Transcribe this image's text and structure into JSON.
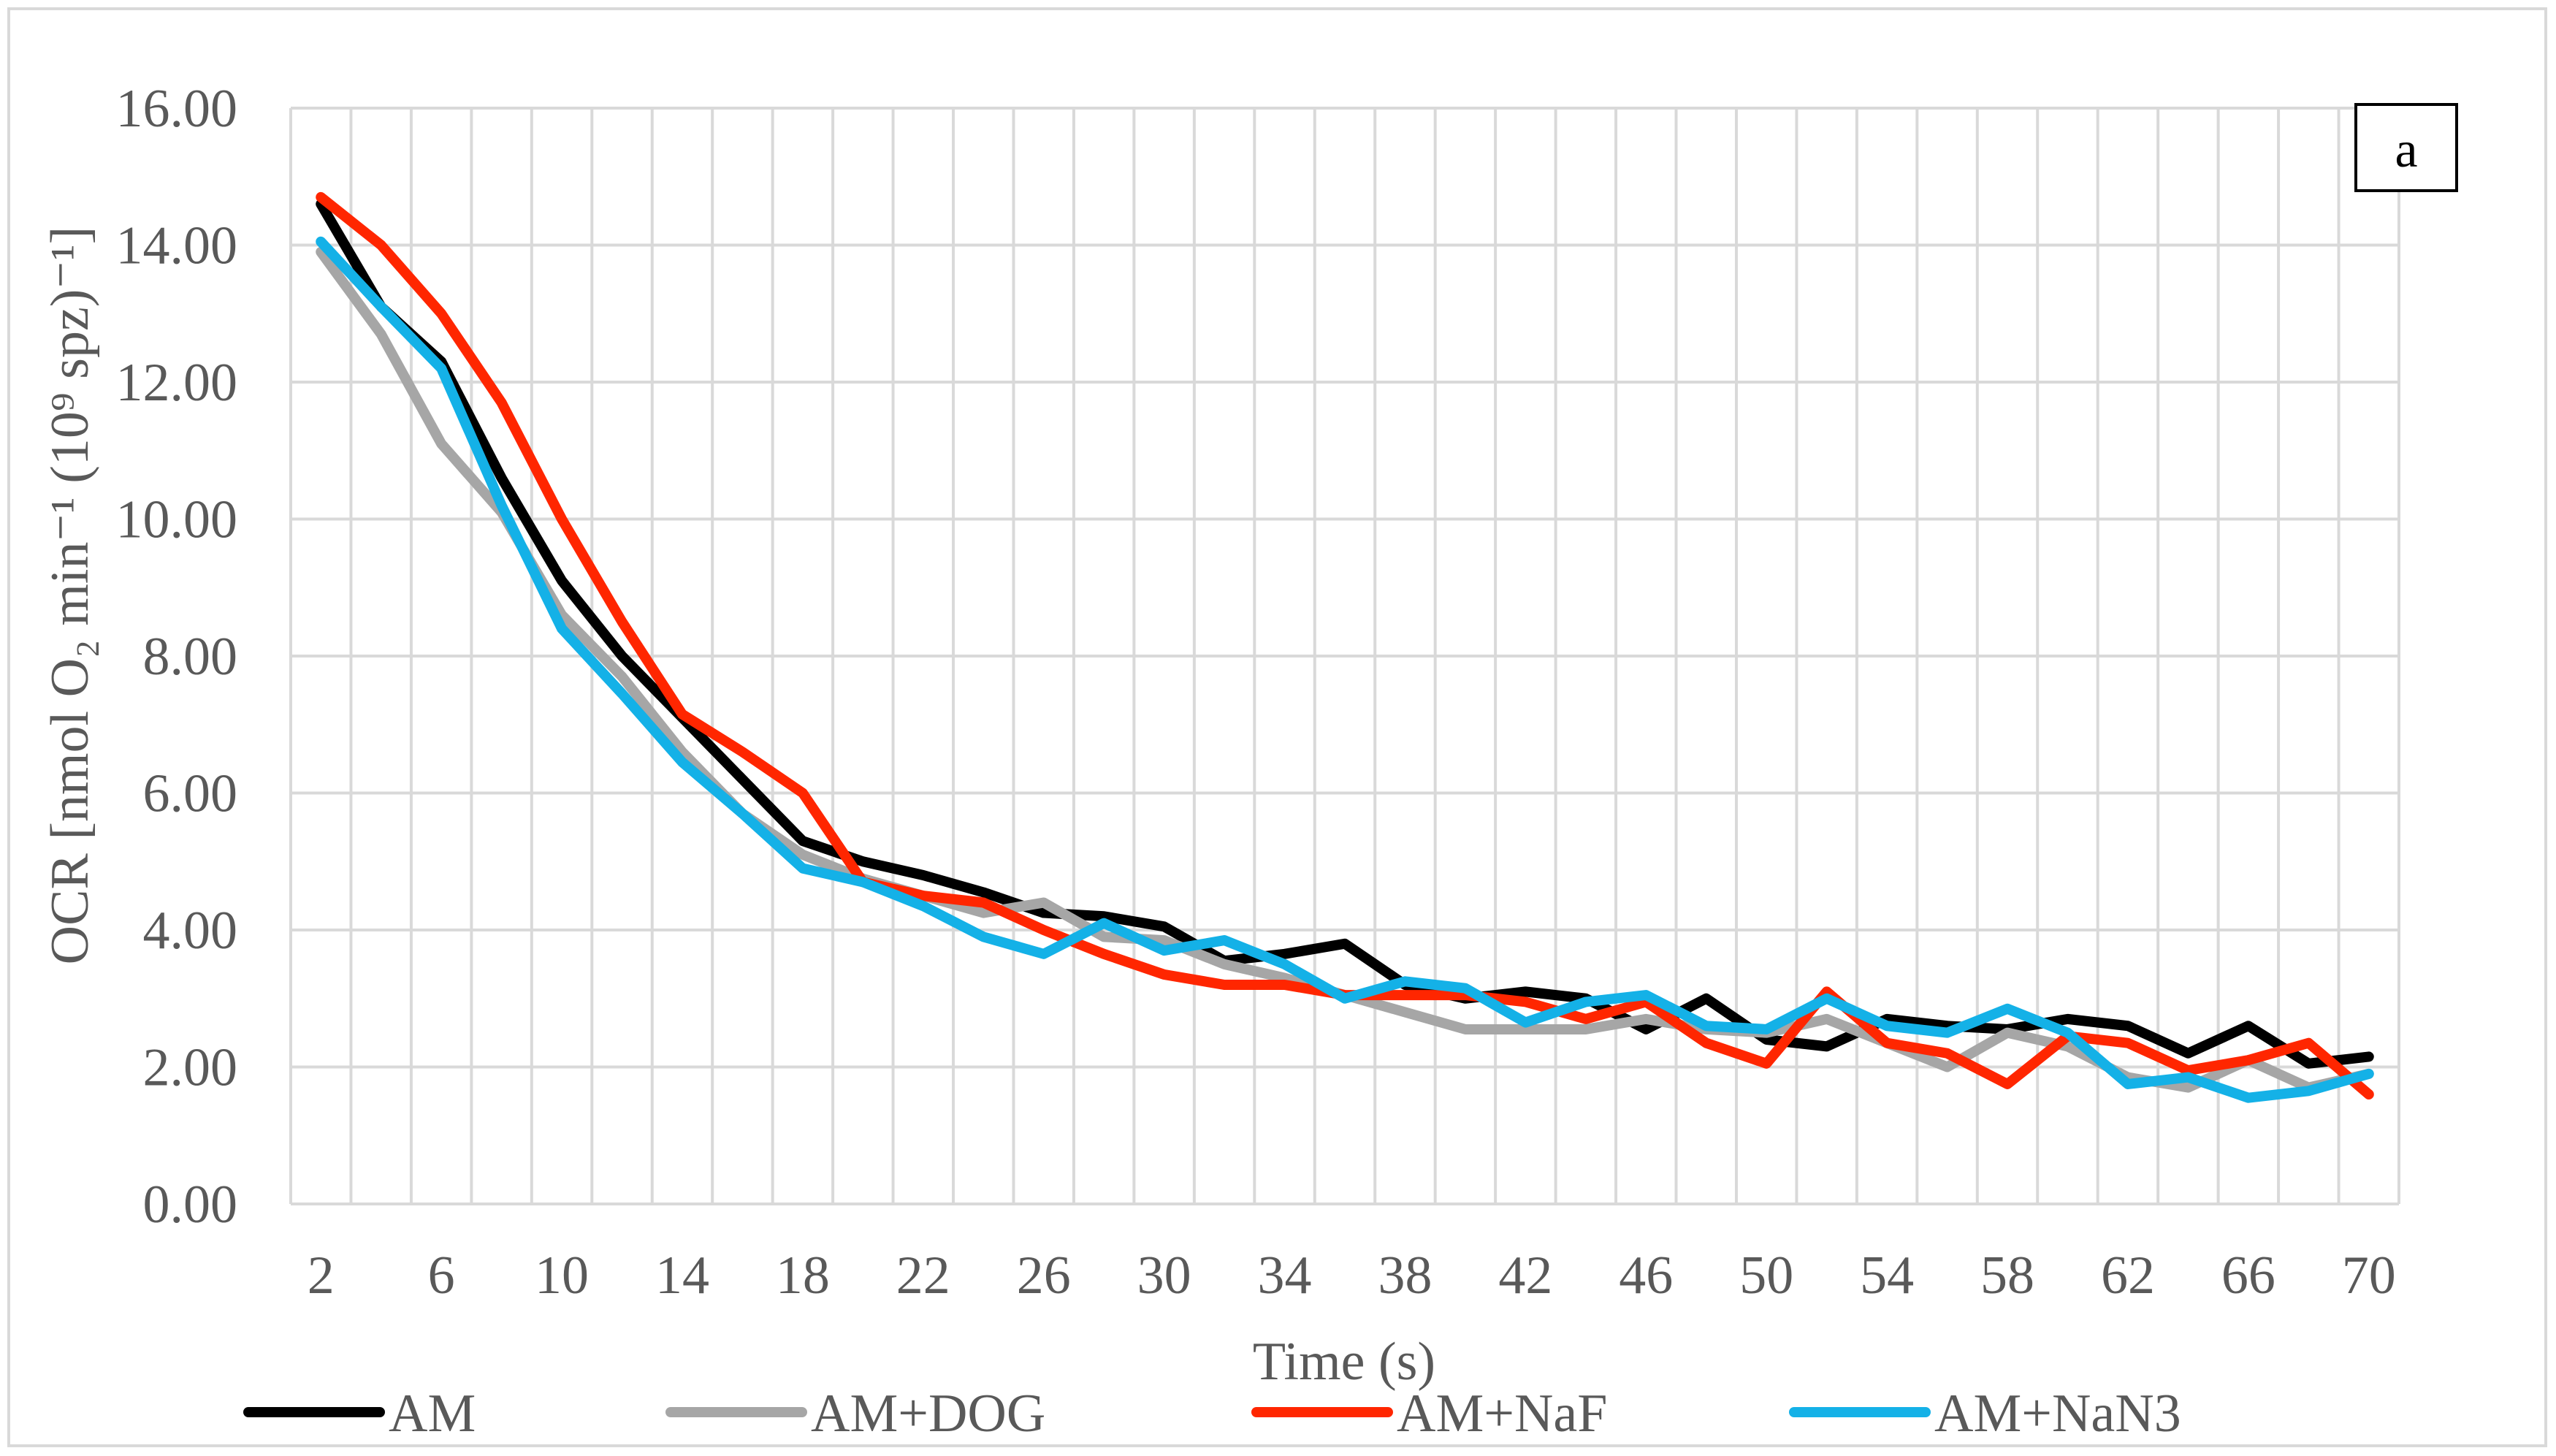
{
  "chart_data": {
    "type": "line",
    "title": "",
    "xlabel": "Time (s)",
    "ylabel": "OCR [nmol O₂ min⁻¹ (10⁹ spz)⁻¹]",
    "ylim": [
      0,
      16
    ],
    "yticks": [
      "0.00",
      "2.00",
      "4.00",
      "6.00",
      "8.00",
      "10.00",
      "12.00",
      "14.00",
      "16.00"
    ],
    "x": [
      2,
      4,
      6,
      8,
      10,
      12,
      14,
      16,
      18,
      20,
      22,
      24,
      26,
      28,
      30,
      32,
      34,
      36,
      38,
      40,
      42,
      44,
      46,
      48,
      50,
      52,
      54,
      56,
      58,
      60,
      62,
      64,
      66,
      68,
      70
    ],
    "xtick_labels": [
      "2",
      "6",
      "10",
      "14",
      "18",
      "22",
      "26",
      "30",
      "34",
      "38",
      "42",
      "46",
      "50",
      "54",
      "58",
      "62",
      "66",
      "70"
    ],
    "grid": true,
    "legend_position": "bottom",
    "annotation": "a",
    "series": [
      {
        "name": "AM",
        "color": "#000000",
        "values": [
          14.6,
          13.1,
          12.3,
          10.6,
          9.1,
          8.0,
          7.1,
          6.2,
          5.3,
          5.0,
          4.8,
          4.55,
          4.25,
          4.2,
          4.05,
          3.55,
          3.65,
          3.8,
          3.2,
          3.0,
          3.1,
          3.0,
          2.55,
          3.0,
          2.4,
          2.3,
          2.7,
          2.6,
          2.55,
          2.7,
          2.6,
          2.2,
          2.6,
          2.05,
          2.15
        ]
      },
      {
        "name": "AM+DOG",
        "color": "#a6a6a6",
        "values": [
          13.9,
          12.7,
          11.1,
          10.1,
          8.6,
          7.7,
          6.6,
          5.7,
          5.1,
          4.75,
          4.5,
          4.25,
          4.4,
          3.9,
          3.85,
          3.5,
          3.3,
          3.05,
          2.8,
          2.55,
          2.55,
          2.55,
          2.7,
          2.55,
          2.5,
          2.7,
          2.35,
          2.0,
          2.5,
          2.3,
          1.85,
          1.7,
          2.1,
          1.7,
          1.9
        ]
      },
      {
        "name": "AM+NaF",
        "color": "#ff2600",
        "values": [
          14.7,
          14.0,
          13.0,
          11.7,
          10.0,
          8.5,
          7.15,
          6.6,
          6.0,
          4.7,
          4.5,
          4.4,
          4.0,
          3.65,
          3.35,
          3.2,
          3.2,
          3.05,
          3.05,
          3.05,
          2.95,
          2.7,
          2.95,
          2.35,
          2.05,
          3.1,
          2.35,
          2.2,
          1.75,
          2.45,
          2.35,
          1.95,
          2.1,
          2.35,
          1.6
        ]
      },
      {
        "name": "AM+NaN3",
        "color": "#14b1e7",
        "values": [
          14.05,
          13.1,
          12.2,
          10.2,
          8.4,
          7.45,
          6.45,
          5.7,
          4.9,
          4.7,
          4.35,
          3.9,
          3.65,
          4.1,
          3.7,
          3.85,
          3.5,
          3.0,
          3.25,
          3.15,
          2.65,
          2.95,
          3.05,
          2.6,
          2.55,
          3.0,
          2.6,
          2.5,
          2.85,
          2.5,
          1.75,
          1.85,
          1.55,
          1.65,
          1.9
        ]
      }
    ]
  }
}
